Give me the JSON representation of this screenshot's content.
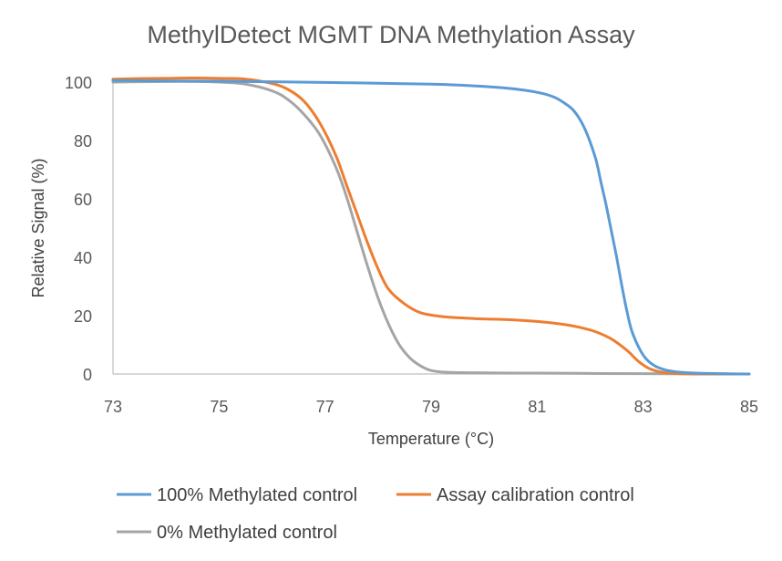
{
  "chart_data": {
    "type": "line",
    "title": "MethylDetect MGMT DNA Methylation Assay",
    "xlabel": "Temperature (°C)",
    "ylabel": "Relative Signal (%)",
    "xlim": [
      73,
      85
    ],
    "ylim": [
      0,
      100
    ],
    "x_ticks": [
      "73",
      "75",
      "77",
      "79",
      "81",
      "83",
      "85"
    ],
    "y_ticks": [
      "0",
      "20",
      "40",
      "60",
      "80",
      "100"
    ],
    "grid": false,
    "legend_position": "bottom",
    "series": [
      {
        "name": "100% Methylated control",
        "color": "#5B9BD5",
        "points": [
          [
            73,
            100.5
          ],
          [
            74,
            100.4
          ],
          [
            75,
            100.3
          ],
          [
            76,
            100.1
          ],
          [
            77,
            99.9
          ],
          [
            78,
            99.6
          ],
          [
            79,
            99.3
          ],
          [
            79.5,
            99.0
          ],
          [
            80,
            98.5
          ],
          [
            80.5,
            97.8
          ],
          [
            81,
            96.5
          ],
          [
            81.3,
            95.0
          ],
          [
            81.5,
            93.0
          ],
          [
            81.7,
            90.0
          ],
          [
            81.9,
            84.0
          ],
          [
            82.1,
            74.0
          ],
          [
            82.2,
            66.0
          ],
          [
            82.3,
            58.0
          ],
          [
            82.4,
            49.0
          ],
          [
            82.5,
            40.0
          ],
          [
            82.6,
            30.0
          ],
          [
            82.7,
            21.0
          ],
          [
            82.8,
            14.0
          ],
          [
            83.0,
            6.5
          ],
          [
            83.2,
            3.0
          ],
          [
            83.4,
            1.5
          ],
          [
            83.6,
            0.8
          ],
          [
            84,
            0.3
          ],
          [
            84.5,
            0.1
          ],
          [
            85,
            0.0
          ]
        ]
      },
      {
        "name": "Assay calibration control",
        "color": "#ED7D31",
        "points": [
          [
            73,
            101.0
          ],
          [
            73.5,
            101.2
          ],
          [
            74,
            101.3
          ],
          [
            74.5,
            101.4
          ],
          [
            75,
            101.3
          ],
          [
            75.5,
            101.0
          ],
          [
            76,
            99.5
          ],
          [
            76.3,
            97.5
          ],
          [
            76.6,
            93.5
          ],
          [
            76.9,
            86.0
          ],
          [
            77.2,
            75.0
          ],
          [
            77.4,
            65.0
          ],
          [
            77.6,
            55.0
          ],
          [
            77.8,
            45.0
          ],
          [
            78.0,
            36.0
          ],
          [
            78.2,
            29.0
          ],
          [
            78.5,
            24.0
          ],
          [
            78.8,
            21.0
          ],
          [
            79.2,
            19.7
          ],
          [
            79.8,
            19.0
          ],
          [
            80.5,
            18.6
          ],
          [
            81,
            18.0
          ],
          [
            81.5,
            17.0
          ],
          [
            81.8,
            16.0
          ],
          [
            82.1,
            14.5
          ],
          [
            82.4,
            12.0
          ],
          [
            82.7,
            8.0
          ],
          [
            82.9,
            4.5
          ],
          [
            83.1,
            2.0
          ],
          [
            83.3,
            0.8
          ],
          [
            83.6,
            0.2
          ],
          [
            84,
            0.0
          ],
          [
            85,
            0.0
          ]
        ]
      },
      {
        "name": "0% Methylated control",
        "color": "#A5A5A5",
        "points": [
          [
            73,
            100.0
          ],
          [
            73.5,
            100.1
          ],
          [
            74,
            100.2
          ],
          [
            74.5,
            100.2
          ],
          [
            75,
            100.0
          ],
          [
            75.5,
            99.3
          ],
          [
            76,
            97.0
          ],
          [
            76.3,
            94.0
          ],
          [
            76.6,
            89.0
          ],
          [
            76.9,
            82.0
          ],
          [
            77.2,
            71.0
          ],
          [
            77.4,
            61.0
          ],
          [
            77.6,
            49.0
          ],
          [
            77.8,
            37.0
          ],
          [
            78.0,
            26.0
          ],
          [
            78.2,
            17.0
          ],
          [
            78.4,
            10.0
          ],
          [
            78.6,
            5.5
          ],
          [
            78.8,
            2.8
          ],
          [
            79.0,
            1.2
          ],
          [
            79.3,
            0.6
          ],
          [
            80,
            0.4
          ],
          [
            81,
            0.3
          ],
          [
            82,
            0.2
          ],
          [
            83,
            0.1
          ],
          [
            85,
            0.0
          ]
        ]
      }
    ]
  }
}
